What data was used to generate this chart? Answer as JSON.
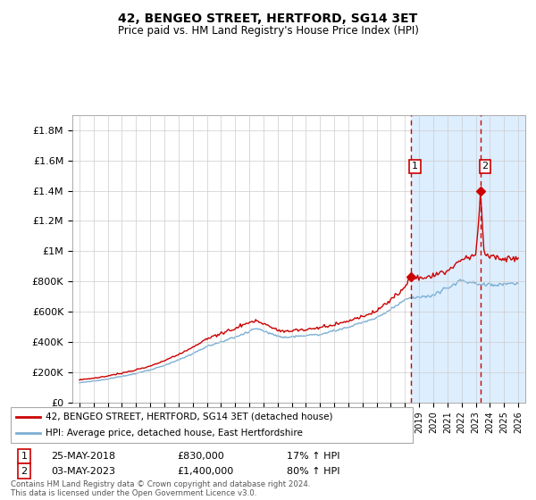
{
  "title": "42, BENGEO STREET, HERTFORD, SG14 3ET",
  "subtitle": "Price paid vs. HM Land Registry's House Price Index (HPI)",
  "ylim": [
    0,
    1900000
  ],
  "yticks": [
    0,
    200000,
    400000,
    600000,
    800000,
    1000000,
    1200000,
    1400000,
    1600000,
    1800000
  ],
  "ytick_labels": [
    "£0",
    "£200K",
    "£400K",
    "£600K",
    "£800K",
    "£1M",
    "£1.2M",
    "£1.4M",
    "£1.6M",
    "£1.8M"
  ],
  "x_start_year": 1995,
  "x_end_year": 2026,
  "purchase1_year": 2018.4,
  "purchase1_price": 830000,
  "purchase1_label": "25-MAY-2018",
  "purchase1_amount": "£830,000",
  "purchase1_hpi": "17% ↑ HPI",
  "purchase2_year": 2023.35,
  "purchase2_price": 1400000,
  "purchase2_label": "03-MAY-2023",
  "purchase2_amount": "£1,400,000",
  "purchase2_hpi": "80% ↑ HPI",
  "legend_line1": "42, BENGEO STREET, HERTFORD, SG14 3ET (detached house)",
  "legend_line2": "HPI: Average price, detached house, East Hertfordshire",
  "footer": "Contains HM Land Registry data © Crown copyright and database right 2024.\nThis data is licensed under the Open Government Licence v3.0.",
  "hpi_color": "#7bafd4",
  "price_color": "#cc0000",
  "bg_color": "#ffffff",
  "grid_color": "#cccccc",
  "shade_color": "#ddeeff",
  "hatch_color": "#aaccee"
}
